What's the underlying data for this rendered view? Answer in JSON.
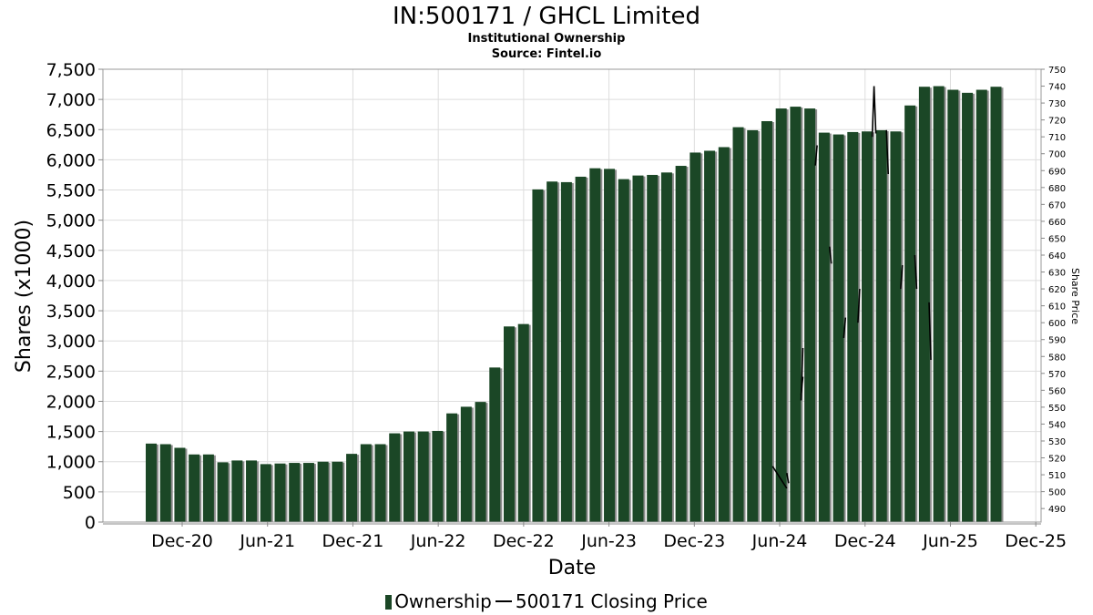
{
  "title": "IN:500171 / GHCL Limited",
  "subtitle": "Institutional Ownership",
  "source": "Source: Fintel.io",
  "colors": {
    "bar": "#1b4726",
    "bar_shadow": "#8c8c8c",
    "price_line": "#000000",
    "grid": "#dddddd"
  },
  "legend": {
    "ownership": "Ownership",
    "price": "500171 Closing Price"
  },
  "chart_data": {
    "type": "bar",
    "title": "IN:500171 / GHCL Limited",
    "xlabel": "Date",
    "ylabel": "Shares (x1000)",
    "y2label": "Share Price",
    "ylim": [
      0,
      7500
    ],
    "y2lim": [
      482,
      750
    ],
    "grid": true,
    "legend_position": "bottom",
    "y_ticks": [
      "0",
      "500",
      "1,000",
      "1,500",
      "2,000",
      "2,500",
      "3,000",
      "3,500",
      "4,000",
      "4,500",
      "5,000",
      "5,500",
      "6,000",
      "6,500",
      "7,000",
      "7,500"
    ],
    "y2_ticks": [
      "490",
      "500",
      "510",
      "520",
      "530",
      "540",
      "550",
      "560",
      "570",
      "580",
      "590",
      "600",
      "610",
      "620",
      "630",
      "640",
      "650",
      "660",
      "670",
      "680",
      "690",
      "700",
      "710",
      "720",
      "730",
      "740",
      "750"
    ],
    "x_ticks": [
      "Dec-20",
      "Jun-21",
      "Dec-21",
      "Jun-22",
      "Dec-22",
      "Jun-23",
      "Dec-23",
      "Jun-24",
      "Dec-24",
      "Jun-25",
      "Dec-25"
    ],
    "series": [
      {
        "name": "Ownership",
        "type": "bar",
        "values": [
          1300,
          1290,
          1230,
          1120,
          1120,
          990,
          1020,
          1020,
          960,
          970,
          980,
          980,
          1000,
          1000,
          1130,
          1290,
          1290,
          1470,
          1500,
          1500,
          1510,
          1800,
          1910,
          1990,
          2560,
          3240,
          3280,
          5510,
          5640,
          5630,
          5720,
          5860,
          5850,
          5680,
          5740,
          5750,
          5790,
          5900,
          6120,
          6150,
          6210,
          6540,
          6490,
          6640,
          6850,
          6880,
          6850,
          6450,
          6420,
          6460,
          6470,
          6490,
          6470,
          6900,
          7210,
          7220,
          7160,
          7110,
          7160,
          7210
        ]
      },
      {
        "name": "500171 Closing Price",
        "type": "line",
        "segments": [
          {
            "x": [
              "May-24",
              "Jun-24"
            ],
            "y": [
              515,
              502
            ]
          },
          {
            "x": [
              "Jun-24",
              "Jun-24"
            ],
            "y": [
              511,
              505
            ]
          },
          {
            "x": [
              "Jul-24",
              "Jul-24"
            ],
            "y": [
              557,
              568
            ]
          },
          {
            "x": [
              "Jul-24",
              "Jul-24"
            ],
            "y": [
              554,
              585
            ]
          },
          {
            "x": [
              "Aug-24",
              "Aug-24"
            ],
            "y": [
              693,
              705
            ]
          },
          {
            "x": [
              "Sep-24",
              "Sep-24"
            ],
            "y": [
              645,
              635
            ]
          },
          {
            "x": [
              "Oct-24",
              "Oct-24"
            ],
            "y": [
              591,
              603
            ]
          },
          {
            "x": [
              "Nov-24",
              "Nov-24"
            ],
            "y": [
              600,
              620
            ]
          },
          {
            "x": [
              "Dec-24",
              "Dec-24",
              "Dec-24"
            ],
            "y": [
              710,
              740,
              712
            ]
          },
          {
            "x": [
              "Jan-25",
              "Jan-25"
            ],
            "y": [
              714,
              688
            ]
          },
          {
            "x": [
              "Feb-25",
              "Feb-25"
            ],
            "y": [
              620,
              634
            ]
          },
          {
            "x": [
              "Mar-25",
              "Mar-25"
            ],
            "y": [
              640,
              620
            ]
          },
          {
            "x": [
              "Apr-25",
              "Apr-25"
            ],
            "y": [
              612,
              578
            ]
          }
        ]
      }
    ]
  }
}
